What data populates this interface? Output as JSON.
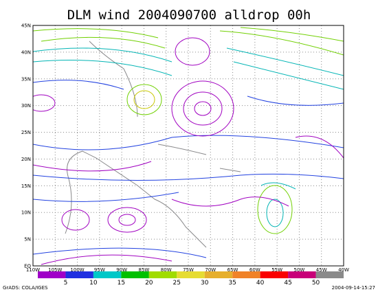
{
  "title": "DLM wind 2004090700 alldrop 00h",
  "map": {
    "lat_labels": [
      "EQ",
      "5N",
      "10N",
      "15N",
      "20N",
      "25N",
      "30N",
      "35N",
      "40N",
      "45N"
    ],
    "lon_labels": [
      "110W",
      "105W",
      "100W",
      "95W",
      "90W",
      "85W",
      "80W",
      "75W",
      "70W",
      "65W",
      "60W",
      "55W",
      "50W",
      "45W",
      "40W"
    ]
  },
  "colorbar": {
    "labels": [
      5,
      10,
      15,
      20,
      25,
      30,
      35,
      40,
      45,
      50
    ]
  },
  "footer": {
    "left": "GrADS: COLA/IGES",
    "right": "2004-09-14-15:27"
  }
}
